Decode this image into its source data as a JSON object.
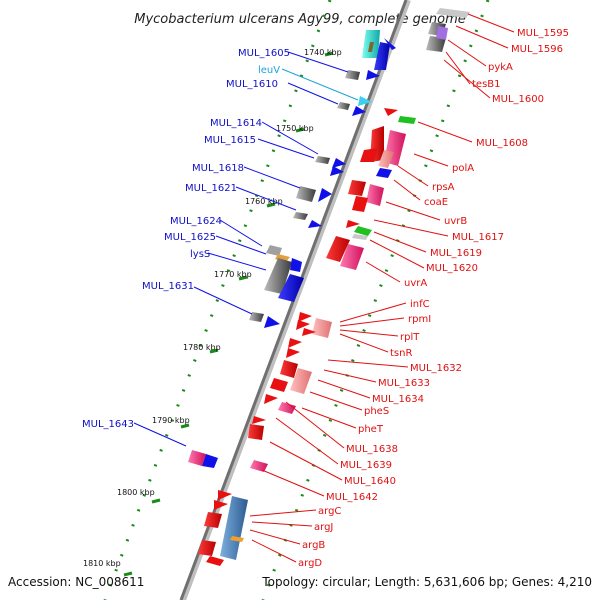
{
  "title": "Mycobacterium ulcerans Agy99, complete genome",
  "footer": {
    "accession": "Accession: NC_008611",
    "topology": "Topology: circular; Length: 5,631,606 bp; Genes: 4,210"
  },
  "ticks": [
    "1740 kbp",
    "1750 kbp",
    "1760 kbp",
    "1770 kbp",
    "1780 kbp",
    "1790 kbp",
    "1800 kbp",
    "1810 kbp"
  ],
  "left_labels": [
    "MUL_1605",
    "leuV",
    "MUL_1610",
    "MUL_1614",
    "MUL_1615",
    "MUL_1618",
    "MUL_1621",
    "MUL_1624",
    "MUL_1625",
    "lysS",
    "MUL_1631",
    "MUL_1643"
  ],
  "right_labels": [
    "MUL_1595",
    "MUL_1596",
    "pykA",
    "tesB1",
    "MUL_1600",
    "MUL_1608",
    "polA",
    "rpsA",
    "coaE",
    "uvrB",
    "MUL_1617",
    "MUL_1619",
    "MUL_1620",
    "uvrA",
    "infC",
    "rpmI",
    "rplT",
    "tsnR",
    "MUL_1632",
    "MUL_1633",
    "MUL_1634",
    "pheS",
    "pheT",
    "MUL_1638",
    "MUL_1639",
    "MUL_1640",
    "MUL_1642",
    "argC",
    "argJ",
    "argB",
    "argD"
  ],
  "colors": {
    "forward": "#1010e8",
    "reverse": "#e81010",
    "backbone": "#7a7a7a",
    "gc_marks": "#1a8a1a"
  }
}
